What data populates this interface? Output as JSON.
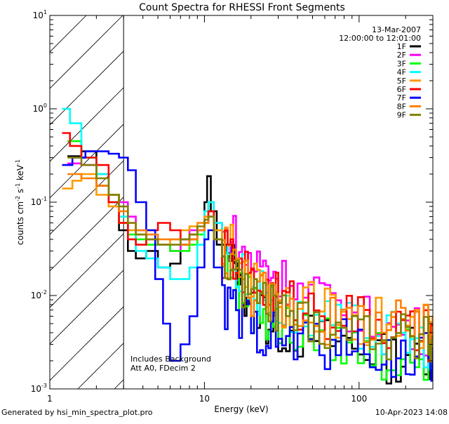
{
  "chart_data": {
    "type": "line",
    "title": "Count Spectra for RHESSI Front Segments",
    "xlabel": "Energy (keV)",
    "ylabel": "counts cm^-2 s^-1 keV^-1",
    "x_scale": "log",
    "y_scale": "log",
    "xlim": [
      1,
      300
    ],
    "ylim": [
      0.001,
      10
    ],
    "x_ticks": [
      {
        "value": 1,
        "label": "1"
      },
      {
        "value": 10,
        "label": "10"
      },
      {
        "value": 100,
        "label": "100"
      }
    ],
    "y_ticks": [
      {
        "value": 0.001,
        "base": "10",
        "exp": "-3"
      },
      {
        "value": 0.01,
        "base": "10",
        "exp": "-2"
      },
      {
        "value": 0.1,
        "base": "10",
        "exp": "-1"
      },
      {
        "value": 1,
        "base": "10",
        "exp": "0"
      },
      {
        "value": 10,
        "base": "10",
        "exp": "1"
      }
    ],
    "hatched_region": [
      1,
      3
    ],
    "annotations": {
      "date": "13-Mar-2007",
      "time_range": "12:00:00 to 12:01:00",
      "background_note": "Includes Background",
      "attenuator_note": "Att A0, FDecim 2"
    },
    "legend_position": "top-right",
    "series": [
      {
        "name": "1F",
        "color": "#000000",
        "points": [
          [
            1.3,
            0.31
          ],
          [
            1.6,
            0.35
          ],
          [
            2.0,
            0.15
          ],
          [
            2.4,
            0.1
          ],
          [
            2.8,
            0.05
          ],
          [
            3.2,
            0.03
          ],
          [
            3.6,
            0.025
          ],
          [
            4.2,
            0.03
          ],
          [
            5.0,
            0.02
          ],
          [
            6.0,
            0.022
          ],
          [
            7.0,
            0.035
          ],
          [
            8.0,
            0.04
          ],
          [
            9.0,
            0.05
          ],
          [
            10.0,
            0.1
          ],
          [
            10.4,
            0.19
          ],
          [
            11.0,
            0.08
          ],
          [
            12.0,
            0.035
          ],
          [
            14.0,
            0.02
          ],
          [
            17.0,
            0.01
          ],
          [
            20.0,
            0.007
          ],
          [
            25.0,
            0.005
          ],
          [
            30.0,
            0.004
          ],
          [
            40.0,
            0.0035
          ],
          [
            60.0,
            0.003
          ],
          [
            90.0,
            0.0025
          ],
          [
            140.0,
            0.002
          ],
          [
            200.0,
            0.0025
          ],
          [
            280.0,
            0.002
          ]
        ]
      },
      {
        "name": "2F",
        "color": "#ff00ff",
        "points": [
          [
            1.3,
            0.26
          ],
          [
            1.6,
            0.25
          ],
          [
            2.0,
            0.2
          ],
          [
            2.4,
            0.12
          ],
          [
            2.8,
            0.1
          ],
          [
            3.2,
            0.07
          ],
          [
            3.6,
            0.05
          ],
          [
            4.2,
            0.04
          ],
          [
            5.0,
            0.035
          ],
          [
            6.0,
            0.03
          ],
          [
            7.0,
            0.04
          ],
          [
            8.0,
            0.05
          ],
          [
            9.0,
            0.06
          ],
          [
            10.0,
            0.07
          ],
          [
            10.6,
            0.1
          ],
          [
            11.5,
            0.06
          ],
          [
            13.0,
            0.04
          ],
          [
            16.0,
            0.025
          ],
          [
            20.0,
            0.02
          ],
          [
            25.0,
            0.017
          ],
          [
            30.0,
            0.014
          ],
          [
            40.0,
            0.01
          ],
          [
            60.0,
            0.007
          ],
          [
            90.0,
            0.005
          ],
          [
            140.0,
            0.004
          ],
          [
            200.0,
            0.004
          ],
          [
            280.0,
            0.003
          ]
        ]
      },
      {
        "name": "3F",
        "color": "#00ff00",
        "points": [
          [
            1.3,
            0.45
          ],
          [
            1.6,
            0.3
          ],
          [
            2.0,
            0.2
          ],
          [
            2.4,
            0.12
          ],
          [
            2.8,
            0.06
          ],
          [
            3.2,
            0.045
          ],
          [
            3.6,
            0.04
          ],
          [
            4.2,
            0.035
          ],
          [
            5.0,
            0.035
          ],
          [
            6.0,
            0.03
          ],
          [
            7.0,
            0.03
          ],
          [
            8.0,
            0.035
          ],
          [
            9.0,
            0.045
          ],
          [
            10.0,
            0.06
          ],
          [
            10.6,
            0.1
          ],
          [
            11.5,
            0.05
          ],
          [
            13.0,
            0.02
          ],
          [
            16.0,
            0.01
          ],
          [
            20.0,
            0.007
          ],
          [
            25.0,
            0.005
          ],
          [
            30.0,
            0.004
          ],
          [
            40.0,
            0.0035
          ],
          [
            60.0,
            0.003
          ],
          [
            90.0,
            0.0025
          ],
          [
            140.0,
            0.002
          ],
          [
            200.0,
            0.0022
          ],
          [
            280.0,
            0.002
          ]
        ]
      },
      {
        "name": "4F",
        "color": "#00ffff",
        "points": [
          [
            1.2,
            1.0
          ],
          [
            1.35,
            0.7
          ],
          [
            1.6,
            0.3
          ],
          [
            2.0,
            0.2
          ],
          [
            2.4,
            0.1
          ],
          [
            2.8,
            0.07
          ],
          [
            3.2,
            0.05
          ],
          [
            3.6,
            0.03
          ],
          [
            4.2,
            0.025
          ],
          [
            5.0,
            0.02
          ],
          [
            6.0,
            0.015
          ],
          [
            7.0,
            0.015
          ],
          [
            8.0,
            0.02
          ],
          [
            9.0,
            0.035
          ],
          [
            10.0,
            0.08
          ],
          [
            10.6,
            0.1
          ],
          [
            11.5,
            0.06
          ],
          [
            13.0,
            0.03
          ],
          [
            16.0,
            0.015
          ],
          [
            20.0,
            0.01
          ],
          [
            25.0,
            0.008
          ],
          [
            30.0,
            0.006
          ],
          [
            40.0,
            0.005
          ],
          [
            60.0,
            0.0045
          ],
          [
            90.0,
            0.004
          ],
          [
            140.0,
            0.0035
          ],
          [
            200.0,
            0.003
          ],
          [
            280.0,
            0.003
          ]
        ]
      },
      {
        "name": "5F",
        "color": "#ff9900",
        "points": [
          [
            1.2,
            0.14
          ],
          [
            1.4,
            0.17
          ],
          [
            1.6,
            0.2
          ],
          [
            2.0,
            0.12
          ],
          [
            2.4,
            0.09
          ],
          [
            2.8,
            0.06
          ],
          [
            3.2,
            0.05
          ],
          [
            3.6,
            0.045
          ],
          [
            4.2,
            0.04
          ],
          [
            5.0,
            0.035
          ],
          [
            6.0,
            0.04
          ],
          [
            7.0,
            0.05
          ],
          [
            8.0,
            0.055
          ],
          [
            9.0,
            0.06
          ],
          [
            10.0,
            0.07
          ],
          [
            10.6,
            0.08
          ],
          [
            11.5,
            0.05
          ],
          [
            13.0,
            0.03
          ],
          [
            16.0,
            0.02
          ],
          [
            20.0,
            0.013
          ],
          [
            25.0,
            0.01
          ],
          [
            30.0,
            0.008
          ],
          [
            40.0,
            0.007
          ],
          [
            60.0,
            0.006
          ],
          [
            90.0,
            0.005
          ],
          [
            140.0,
            0.0045
          ],
          [
            200.0,
            0.004
          ],
          [
            280.0,
            0.0035
          ]
        ]
      },
      {
        "name": "6F",
        "color": "#ff0000",
        "points": [
          [
            1.2,
            0.55
          ],
          [
            1.35,
            0.4
          ],
          [
            1.6,
            0.3
          ],
          [
            2.0,
            0.25
          ],
          [
            2.4,
            0.1
          ],
          [
            2.8,
            0.06
          ],
          [
            3.2,
            0.04
          ],
          [
            3.6,
            0.035
          ],
          [
            4.2,
            0.05
          ],
          [
            5.0,
            0.06
          ],
          [
            6.0,
            0.05
          ],
          [
            7.0,
            0.04
          ],
          [
            8.0,
            0.045
          ],
          [
            9.0,
            0.05
          ],
          [
            10.0,
            0.06
          ],
          [
            10.6,
            0.08
          ],
          [
            11.5,
            0.04
          ],
          [
            13.0,
            0.025
          ],
          [
            16.0,
            0.015
          ],
          [
            20.0,
            0.012
          ],
          [
            25.0,
            0.01
          ],
          [
            30.0,
            0.008
          ],
          [
            40.0,
            0.007
          ],
          [
            60.0,
            0.006
          ],
          [
            90.0,
            0.005
          ],
          [
            140.0,
            0.004
          ],
          [
            200.0,
            0.0035
          ],
          [
            280.0,
            0.003
          ]
        ]
      },
      {
        "name": "7F",
        "color": "#0000ff",
        "points": [
          [
            1.2,
            0.25
          ],
          [
            1.4,
            0.3
          ],
          [
            1.7,
            0.35
          ],
          [
            2.0,
            0.35
          ],
          [
            2.4,
            0.33
          ],
          [
            2.8,
            0.3
          ],
          [
            3.2,
            0.22
          ],
          [
            3.6,
            0.1
          ],
          [
            4.2,
            0.05
          ],
          [
            4.8,
            0.015
          ],
          [
            5.4,
            0.005
          ],
          [
            6.0,
            0.002
          ],
          [
            7.0,
            0.003
          ],
          [
            8.0,
            0.006
          ],
          [
            9.0,
            0.02
          ],
          [
            10.0,
            0.04
          ],
          [
            10.6,
            0.05
          ],
          [
            11.5,
            0.02
          ],
          [
            13.0,
            0.007
          ],
          [
            16.0,
            0.005
          ],
          [
            20.0,
            0.004
          ],
          [
            25.0,
            0.0035
          ],
          [
            30.0,
            0.003
          ],
          [
            40.0,
            0.003
          ],
          [
            60.0,
            0.0028
          ],
          [
            90.0,
            0.0025
          ],
          [
            140.0,
            0.0022
          ],
          [
            200.0,
            0.002
          ],
          [
            280.0,
            0.002
          ]
        ]
      },
      {
        "name": "8F",
        "color": "#ff7f00",
        "points": [
          [
            1.3,
            0.2
          ],
          [
            1.6,
            0.18
          ],
          [
            2.0,
            0.15
          ],
          [
            2.4,
            0.12
          ],
          [
            2.8,
            0.08
          ],
          [
            3.2,
            0.06
          ],
          [
            3.6,
            0.05
          ],
          [
            4.2,
            0.045
          ],
          [
            5.0,
            0.04
          ],
          [
            6.0,
            0.04
          ],
          [
            7.0,
            0.035
          ],
          [
            8.0,
            0.04
          ],
          [
            9.0,
            0.05
          ],
          [
            10.0,
            0.06
          ],
          [
            10.6,
            0.07
          ],
          [
            11.5,
            0.04
          ],
          [
            13.0,
            0.025
          ],
          [
            16.0,
            0.015
          ],
          [
            20.0,
            0.01
          ],
          [
            25.0,
            0.008
          ],
          [
            30.0,
            0.007
          ],
          [
            40.0,
            0.006
          ],
          [
            60.0,
            0.005
          ],
          [
            90.0,
            0.005
          ],
          [
            140.0,
            0.0045
          ],
          [
            200.0,
            0.004
          ],
          [
            280.0,
            0.0035
          ]
        ]
      },
      {
        "name": "9F",
        "color": "#808000",
        "points": [
          [
            1.3,
            0.3
          ],
          [
            1.6,
            0.25
          ],
          [
            2.0,
            0.18
          ],
          [
            2.4,
            0.12
          ],
          [
            2.8,
            0.09
          ],
          [
            3.2,
            0.06
          ],
          [
            3.6,
            0.045
          ],
          [
            4.2,
            0.04
          ],
          [
            5.0,
            0.035
          ],
          [
            6.0,
            0.035
          ],
          [
            7.0,
            0.04
          ],
          [
            8.0,
            0.045
          ],
          [
            9.0,
            0.055
          ],
          [
            10.0,
            0.065
          ],
          [
            10.6,
            0.07
          ],
          [
            11.5,
            0.04
          ],
          [
            13.0,
            0.02
          ],
          [
            16.0,
            0.012
          ],
          [
            20.0,
            0.009
          ],
          [
            25.0,
            0.007
          ],
          [
            30.0,
            0.006
          ],
          [
            40.0,
            0.005
          ],
          [
            60.0,
            0.0045
          ],
          [
            90.0,
            0.004
          ],
          [
            140.0,
            0.0035
          ],
          [
            200.0,
            0.003
          ],
          [
            280.0,
            0.003
          ]
        ]
      }
    ]
  },
  "footer": {
    "generated_by": "Generated by hsi_min_spectra_plot.pro",
    "timestamp": "10-Apr-2023 14:08"
  }
}
